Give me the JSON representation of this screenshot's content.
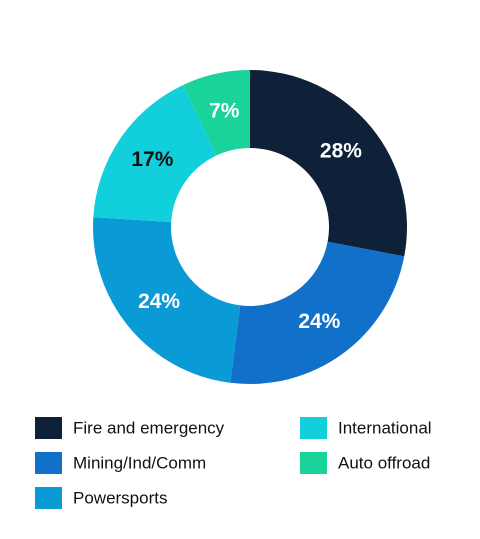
{
  "chart_data": {
    "type": "donut",
    "categories": [
      "Fire and emergency",
      "Mining/Ind/Comm",
      "Powersports",
      "International",
      "Auto offroad"
    ],
    "values": [
      28,
      24,
      24,
      17,
      7
    ],
    "value_labels": [
      "28%",
      "24%",
      "24%",
      "17%",
      "7%"
    ],
    "colors": [
      "#0f2139",
      "#1170c9",
      "#0a9bd7",
      "#12cfdc",
      "#19d39b"
    ],
    "value_label_colors": [
      "#ffffff",
      "#ffffff",
      "#ffffff",
      "#111111",
      "#ffffff"
    ],
    "legend": "bottom"
  }
}
